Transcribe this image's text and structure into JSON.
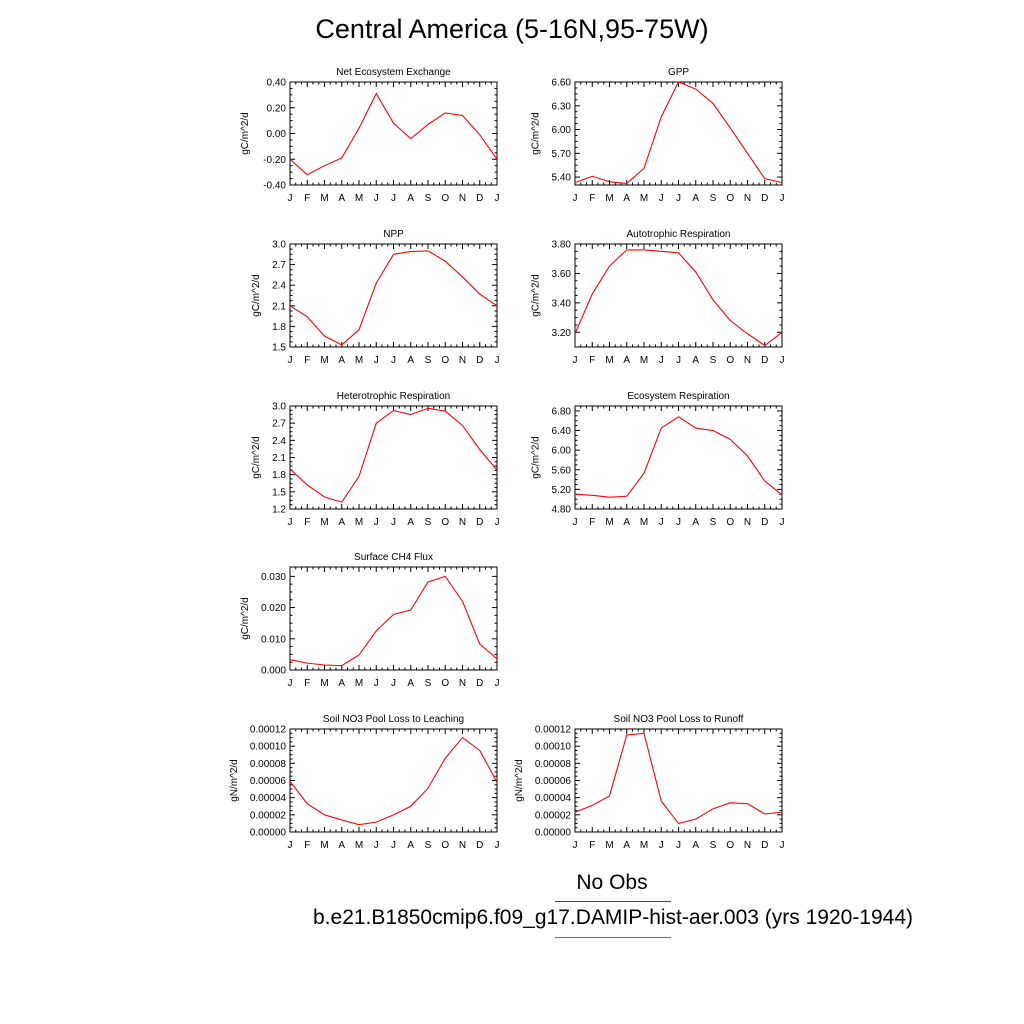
{
  "title": "Central America (5-16N,95-75W)",
  "legend": {
    "obs_label": "No Obs",
    "case_label": "b.e21.B1850cmip6.f09_g17.DAMIP-hist-aer.003 (yrs 1920-1944)",
    "obs_color": "#0000ff",
    "case_color": "#ff0000"
  },
  "months": [
    "J",
    "F",
    "M",
    "A",
    "M",
    "J",
    "J",
    "A",
    "S",
    "O",
    "N",
    "D",
    "J"
  ],
  "line_color": "#ff0000",
  "chart_data": [
    {
      "type": "line",
      "title": "Net Ecosystem Exchange",
      "ylabel": "gC/m^2/d",
      "ylim": [
        -0.4,
        0.4
      ],
      "yticks": [
        -0.4,
        -0.2,
        0.0,
        0.2,
        0.4
      ],
      "ytick_labels": [
        "-0.40",
        "-0.20",
        "0.00",
        "0.20",
        "0.40"
      ],
      "values": [
        -0.2,
        -0.32,
        -0.25,
        -0.19,
        0.04,
        0.31,
        0.08,
        -0.04,
        0.07,
        0.16,
        0.14,
        -0.01,
        -0.2
      ]
    },
    {
      "type": "line",
      "title": "GPP",
      "ylabel": "gC/m^2/d",
      "ylim": [
        5.3,
        6.6
      ],
      "yticks": [
        5.4,
        5.7,
        6.0,
        6.3,
        6.6
      ],
      "ytick_labels": [
        "5.40",
        "5.70",
        "6.00",
        "6.30",
        "6.60"
      ],
      "values": [
        5.33,
        5.41,
        5.34,
        5.32,
        5.51,
        6.16,
        6.6,
        6.51,
        6.33,
        6.02,
        5.7,
        5.38,
        5.33
      ]
    },
    {
      "type": "line",
      "title": "NPP",
      "ylabel": "gC/m^2/d",
      "ylim": [
        1.5,
        3.0
      ],
      "yticks": [
        1.5,
        1.8,
        2.1,
        2.4,
        2.7,
        3.0
      ],
      "ytick_labels": [
        "1.5",
        "1.8",
        "2.1",
        "2.4",
        "2.7",
        "3.0"
      ],
      "values": [
        2.1,
        1.94,
        1.66,
        1.53,
        1.75,
        2.43,
        2.85,
        2.89,
        2.9,
        2.75,
        2.52,
        2.27,
        2.1
      ]
    },
    {
      "type": "line",
      "title": "Autotrophic Respiration",
      "ylabel": "gC/m^2/d",
      "ylim": [
        3.1,
        3.8
      ],
      "yticks": [
        3.2,
        3.4,
        3.6,
        3.8
      ],
      "ytick_labels": [
        "3.20",
        "3.40",
        "3.60",
        "3.80"
      ],
      "values": [
        3.19,
        3.46,
        3.65,
        3.76,
        3.76,
        3.75,
        3.74,
        3.61,
        3.42,
        3.28,
        3.19,
        3.11,
        3.2
      ]
    },
    {
      "type": "line",
      "title": "Heterotrophic Respiration",
      "ylabel": "gC/m^2/d",
      "ylim": [
        1.2,
        3.0
      ],
      "yticks": [
        1.2,
        1.5,
        1.8,
        2.1,
        2.4,
        2.7,
        3.0
      ],
      "ytick_labels": [
        "1.2",
        "1.5",
        "1.8",
        "2.1",
        "2.4",
        "2.7",
        "3.0"
      ],
      "values": [
        1.9,
        1.62,
        1.41,
        1.32,
        1.77,
        2.7,
        2.92,
        2.85,
        2.96,
        2.91,
        2.66,
        2.24,
        1.88
      ]
    },
    {
      "type": "line",
      "title": "Ecosystem Respiration",
      "ylabel": "gC/m^2/d",
      "ylim": [
        4.8,
        6.9
      ],
      "yticks": [
        4.8,
        5.2,
        5.6,
        6.0,
        6.4,
        6.8
      ],
      "ytick_labels": [
        "4.80",
        "5.20",
        "5.60",
        "6.00",
        "6.40",
        "6.80"
      ],
      "values": [
        5.1,
        5.08,
        5.04,
        5.06,
        5.53,
        6.45,
        6.68,
        6.45,
        6.4,
        6.22,
        5.88,
        5.37,
        5.09
      ]
    },
    {
      "type": "line",
      "title": "Surface CH4 Flux",
      "ylabel": "gC/m^2/d",
      "ylim": [
        0.0,
        0.033
      ],
      "yticks": [
        0.0,
        0.01,
        0.02,
        0.03
      ],
      "ytick_labels": [
        "0.000",
        "0.010",
        "0.020",
        "0.030"
      ],
      "values": [
        0.0033,
        0.0022,
        0.0016,
        0.0014,
        0.0048,
        0.0125,
        0.0178,
        0.0192,
        0.0282,
        0.03,
        0.022,
        0.0083,
        0.0036
      ]
    },
    {
      "type": "line",
      "title": "Soil NO3 Pool Loss to Leaching",
      "ylabel": "gN/m^2/d",
      "ylim": [
        0.0,
        0.00012
      ],
      "yticks": [
        0.0,
        2e-05,
        4e-05,
        6e-05,
        8e-05,
        0.0001,
        0.00012
      ],
      "ytick_labels": [
        "0.00000",
        "0.00002",
        "0.00004",
        "0.00006",
        "0.00008",
        "0.00010",
        "0.00012"
      ],
      "values": [
        5.9e-05,
        3.3e-05,
        2e-05,
        1.4e-05,
        8.5e-06,
        1.15e-05,
        2e-05,
        3e-05,
        5.1e-05,
        8.6e-05,
        0.00011,
        9.5e-05,
        5.8e-05
      ]
    },
    {
      "type": "line",
      "title": "Soil NO3 Pool Loss to Runoff",
      "ylabel": "gN/m^2/d",
      "ylim": [
        0.0,
        0.00012
      ],
      "yticks": [
        0.0,
        2e-05,
        4e-05,
        6e-05,
        8e-05,
        0.0001,
        0.00012
      ],
      "ytick_labels": [
        "0.00000",
        "0.00002",
        "0.00004",
        "0.00006",
        "0.00008",
        "0.00010",
        "0.00012"
      ],
      "values": [
        2.3e-05,
        3.1e-05,
        4.2e-05,
        0.000113,
        0.000115,
        3.6e-05,
        1e-05,
        1.5e-05,
        2.7e-05,
        3.4e-05,
        3.3e-05,
        2.1e-05,
        2.3e-05
      ]
    }
  ]
}
